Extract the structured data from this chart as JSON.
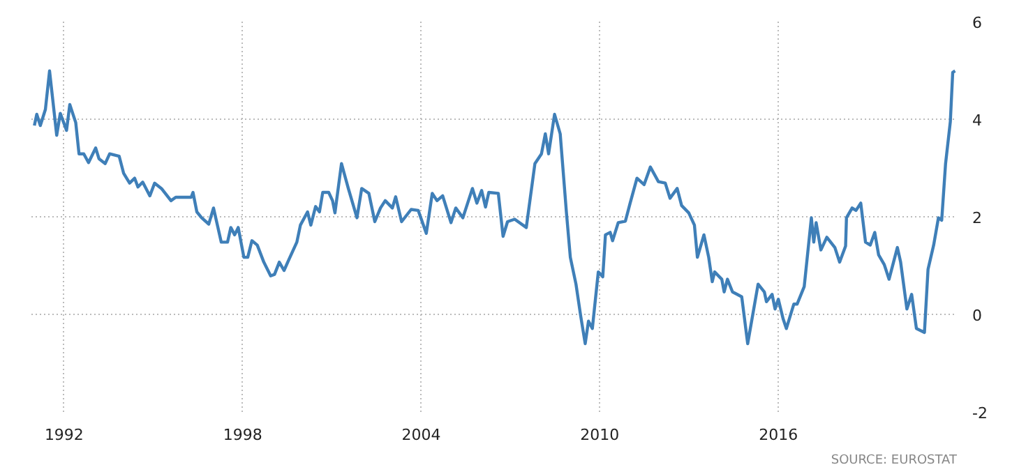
{
  "chart_data": {
    "type": "line",
    "x": [
      1991.0,
      1991.08,
      1991.2,
      1991.37,
      1991.51,
      1991.75,
      1991.87,
      1992.08,
      1992.19,
      1992.39,
      1992.5,
      1992.66,
      1992.82,
      1993.06,
      1993.17,
      1993.38,
      1993.53,
      1993.85,
      1994.0,
      1994.2,
      1994.37,
      1994.48,
      1994.64,
      1994.88,
      1995.04,
      1995.27,
      1995.59,
      1995.75,
      1996.27,
      1996.33,
      1996.46,
      1996.62,
      1996.86,
      1997.02,
      1997.28,
      1997.49,
      1997.6,
      1997.73,
      1997.85,
      1998.04,
      1998.17,
      1998.31,
      1998.49,
      1998.71,
      1998.94,
      1999.07,
      1999.23,
      1999.39,
      1999.55,
      1999.82,
      1999.94,
      2000.18,
      2000.29,
      2000.45,
      2000.58,
      2000.69,
      2000.89,
      2001.02,
      2001.1,
      2001.32,
      2001.55,
      2001.84,
      2002.0,
      2002.24,
      2002.44,
      2002.63,
      2002.79,
      2003.03,
      2003.14,
      2003.34,
      2003.66,
      2003.9,
      2004.17,
      2004.37,
      2004.53,
      2004.72,
      2005.0,
      2005.16,
      2005.4,
      2005.72,
      2005.87,
      2006.03,
      2006.16,
      2006.27,
      2006.59,
      2006.75,
      2006.9,
      2007.14,
      2007.53,
      2007.82,
      2008.04,
      2008.17,
      2008.28,
      2008.48,
      2008.67,
      2008.88,
      2009.01,
      2009.2,
      2009.36,
      2009.51,
      2009.62,
      2009.75,
      2009.95,
      2010.1,
      2010.19,
      2010.35,
      2010.43,
      2010.62,
      2010.86,
      2011.02,
      2011.25,
      2011.49,
      2011.7,
      2011.97,
      2012.2,
      2012.36,
      2012.6,
      2012.75,
      2012.99,
      2013.18,
      2013.28,
      2013.5,
      2013.66,
      2013.78,
      2013.86,
      2014.1,
      2014.18,
      2014.29,
      2014.46,
      2014.77,
      2014.97,
      2015.32,
      2015.53,
      2015.6,
      2015.79,
      2015.89,
      2016.0,
      2016.16,
      2016.27,
      2016.52,
      2016.63,
      2016.87,
      2017.11,
      2017.19,
      2017.27,
      2017.43,
      2017.63,
      2017.9,
      2018.06,
      2018.26,
      2018.29,
      2018.48,
      2018.61,
      2018.77,
      2018.93,
      2019.09,
      2019.24,
      2019.37,
      2019.56,
      2019.72,
      2020.0,
      2020.11,
      2020.32,
      2020.48,
      2020.64,
      2020.91,
      2021.03,
      2021.22,
      2021.38,
      2021.49,
      2021.62,
      2021.78,
      2021.86,
      2021.94
    ],
    "series": [
      {
        "color": "#3f7fb8",
        "values": [
          3.87,
          4.1,
          3.87,
          4.2,
          4.99,
          3.67,
          4.12,
          3.77,
          4.3,
          3.93,
          3.29,
          3.29,
          3.11,
          3.41,
          3.19,
          3.09,
          3.29,
          3.24,
          2.89,
          2.69,
          2.79,
          2.61,
          2.71,
          2.43,
          2.69,
          2.58,
          2.33,
          2.4,
          2.4,
          2.5,
          2.1,
          1.98,
          1.85,
          2.18,
          1.48,
          1.48,
          1.78,
          1.63,
          1.78,
          1.17,
          1.17,
          1.51,
          1.42,
          1.07,
          0.79,
          0.82,
          1.07,
          0.9,
          1.12,
          1.48,
          1.83,
          2.1,
          1.83,
          2.21,
          2.1,
          2.5,
          2.5,
          2.33,
          2.08,
          3.09,
          2.58,
          1.98,
          2.58,
          2.48,
          1.9,
          2.18,
          2.33,
          2.18,
          2.41,
          1.9,
          2.15,
          2.13,
          1.66,
          2.48,
          2.33,
          2.43,
          1.88,
          2.18,
          1.98,
          2.58,
          2.28,
          2.54,
          2.2,
          2.5,
          2.48,
          1.6,
          1.9,
          1.95,
          1.78,
          3.09,
          3.29,
          3.7,
          3.29,
          4.1,
          3.7,
          2.08,
          1.17,
          0.62,
          -0.04,
          -0.6,
          -0.14,
          -0.29,
          0.87,
          0.77,
          1.63,
          1.68,
          1.51,
          1.88,
          1.91,
          2.28,
          2.79,
          2.66,
          3.02,
          2.72,
          2.69,
          2.38,
          2.58,
          2.23,
          2.08,
          1.83,
          1.17,
          1.63,
          1.17,
          0.67,
          0.87,
          0.72,
          0.46,
          0.72,
          0.46,
          0.36,
          -0.6,
          0.62,
          0.46,
          0.26,
          0.41,
          0.11,
          0.31,
          -0.09,
          -0.29,
          0.21,
          0.21,
          0.57,
          1.98,
          1.48,
          1.88,
          1.32,
          1.58,
          1.37,
          1.07,
          1.4,
          1.98,
          2.18,
          2.13,
          2.28,
          1.48,
          1.42,
          1.68,
          1.22,
          1.02,
          0.72,
          1.37,
          1.07,
          0.11,
          0.41,
          -0.29,
          -0.37,
          0.92,
          1.42,
          1.98,
          1.93,
          3.09,
          3.95,
          4.96,
          4.99
        ]
      }
    ],
    "xlim": [
      1990.9,
      2022.0
    ],
    "xticks": [
      1992,
      1998,
      2004,
      2010,
      2016
    ],
    "ylim": [
      -2,
      6
    ],
    "yticks": [
      -2,
      0,
      2,
      4,
      6
    ],
    "grid": true,
    "line_style": "solid",
    "marker": "none",
    "annotations": [
      "SOURCE: EUROSTAT"
    ]
  }
}
